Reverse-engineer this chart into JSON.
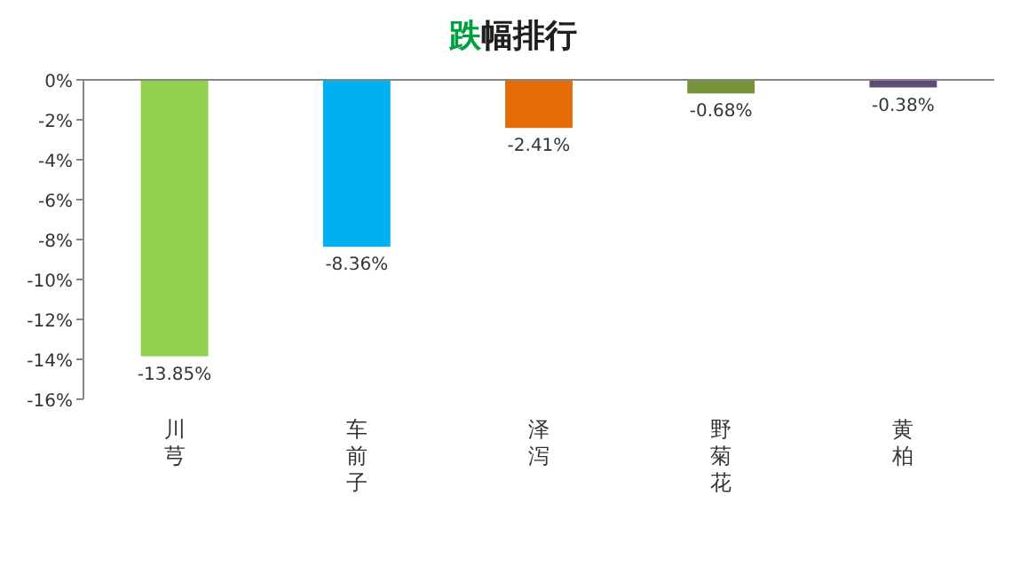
{
  "chart_data": {
    "type": "bar",
    "title": "跌幅排行",
    "categories": [
      "川芎",
      "车前子",
      "泽泻",
      "野菊花",
      "黄柏"
    ],
    "values": [
      -13.85,
      -8.36,
      -2.41,
      -0.68,
      -0.38
    ],
    "colors": [
      "#92d050",
      "#00b0f0",
      "#e36c09",
      "#77933c",
      "#604a7b"
    ],
    "value_labels": [
      "-13.85%",
      "-8.36%",
      "-2.41%",
      "-0.68%",
      "-0.38%"
    ],
    "ylim": [
      -16,
      0
    ],
    "yticks": [
      {
        "value": 0,
        "label": "0%"
      },
      {
        "value": -2,
        "label": "-2%"
      },
      {
        "value": -4,
        "label": "-4%"
      },
      {
        "value": -6,
        "label": "-6%"
      },
      {
        "value": -8,
        "label": "-8%"
      },
      {
        "value": -10,
        "label": "-10%"
      },
      {
        "value": -12,
        "label": "-12%"
      },
      {
        "value": -14,
        "label": "-14%"
      },
      {
        "value": -16,
        "label": "-16%"
      }
    ],
    "grid": false
  }
}
